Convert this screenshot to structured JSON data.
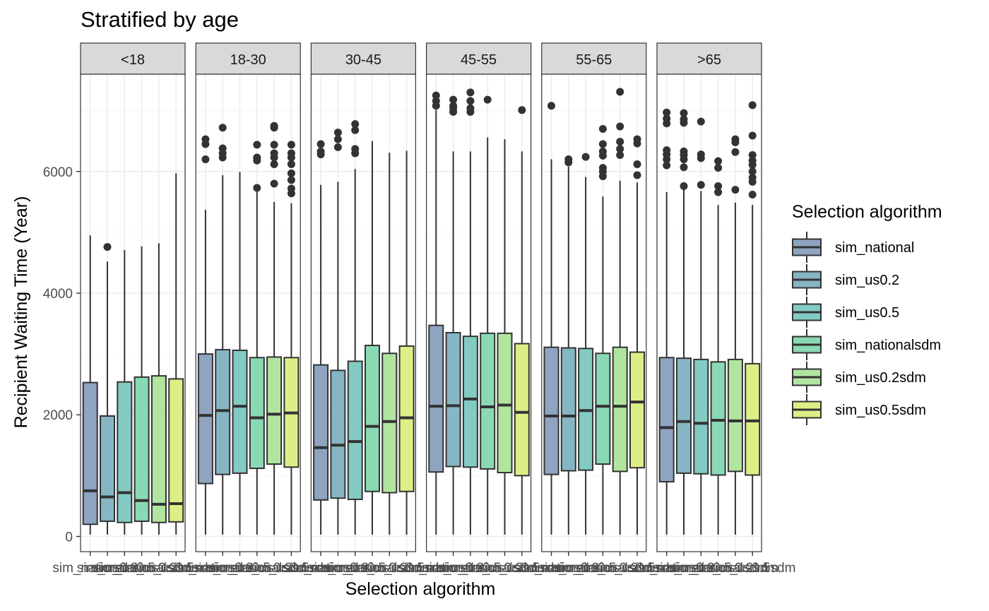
{
  "chart_data": {
    "type": "boxplot",
    "title": "Stratified by age",
    "xlabel": "Selection algorithm",
    "ylabel": "Recipient Waiting Time (Year)",
    "ylim": [
      -250,
      7600
    ],
    "yticks": [
      0,
      2000,
      4000,
      6000
    ],
    "grid": true,
    "legend": {
      "title": "Selection algorithm",
      "position": "right"
    },
    "categories": [
      "sim_national",
      "sim_us0.2",
      "sim_us0.5",
      "sim_nationalsdm",
      "sim_us0.2sdm",
      "sim_us0.5sdm"
    ],
    "colors": [
      "#8fa4c1",
      "#86b6c3",
      "#83cbc2",
      "#8ad9b5",
      "#b1e59f",
      "#dcef86"
    ],
    "panels": [
      {
        "label": "<18",
        "boxes": [
          {
            "min": 30,
            "q1": 200,
            "median": 750,
            "q3": 2530,
            "max": 4950,
            "outliers": []
          },
          {
            "min": 30,
            "q1": 250,
            "median": 650,
            "q3": 1980,
            "max": 4520,
            "outliers": [
              4760
            ]
          },
          {
            "min": 30,
            "q1": 230,
            "median": 720,
            "q3": 2540,
            "max": 4710,
            "outliers": []
          },
          {
            "min": 30,
            "q1": 250,
            "median": 590,
            "q3": 2620,
            "max": 4770,
            "outliers": []
          },
          {
            "min": 30,
            "q1": 230,
            "median": 530,
            "q3": 2640,
            "max": 4820,
            "outliers": []
          },
          {
            "min": 30,
            "q1": 240,
            "median": 540,
            "q3": 2590,
            "max": 5970,
            "outliers": []
          }
        ]
      },
      {
        "label": "18-30",
        "boxes": [
          {
            "min": 30,
            "q1": 870,
            "median": 1990,
            "q3": 3000,
            "max": 5370,
            "outliers": [
              6200,
              6450,
              6530
            ]
          },
          {
            "min": 30,
            "q1": 1020,
            "median": 2070,
            "q3": 3070,
            "max": 5940,
            "outliers": [
              6230,
              6300,
              6380,
              6720
            ]
          },
          {
            "min": 30,
            "q1": 1040,
            "median": 2140,
            "q3": 3060,
            "max": 5990,
            "outliers": []
          },
          {
            "min": 30,
            "q1": 1120,
            "median": 1950,
            "q3": 2940,
            "max": 5670,
            "outliers": [
              5730,
              6180,
              6230,
              6440
            ]
          },
          {
            "min": 30,
            "q1": 1190,
            "median": 2010,
            "q3": 2950,
            "max": 5500,
            "outliers": [
              5800,
              6120,
              6230,
              6300,
              6440,
              6720,
              6750
            ]
          },
          {
            "min": 30,
            "q1": 1140,
            "median": 2030,
            "q3": 2940,
            "max": 5480,
            "outliers": [
              5640,
              5720,
              5860,
              5970,
              6120,
              6230,
              6300,
              6440
            ]
          }
        ]
      },
      {
        "label": "30-45",
        "boxes": [
          {
            "min": 30,
            "q1": 600,
            "median": 1460,
            "q3": 2820,
            "max": 5780,
            "outliers": [
              6280,
              6330,
              6450
            ]
          },
          {
            "min": 30,
            "q1": 630,
            "median": 1500,
            "q3": 2730,
            "max": 5830,
            "outliers": [
              6400,
              6530,
              6640
            ]
          },
          {
            "min": 30,
            "q1": 610,
            "median": 1560,
            "q3": 2880,
            "max": 6040,
            "outliers": [
              6300,
              6370,
              6680,
              6780
            ]
          },
          {
            "min": 30,
            "q1": 740,
            "median": 1810,
            "q3": 3140,
            "max": 6500,
            "outliers": []
          },
          {
            "min": 30,
            "q1": 720,
            "median": 1890,
            "q3": 3010,
            "max": 6310,
            "outliers": []
          },
          {
            "min": 30,
            "q1": 740,
            "median": 1950,
            "q3": 3130,
            "max": 6340,
            "outliers": []
          }
        ]
      },
      {
        "label": "45-55",
        "boxes": [
          {
            "min": 30,
            "q1": 1060,
            "median": 2140,
            "q3": 3470,
            "max": 7010,
            "outliers": [
              7080,
              7160,
              7250
            ]
          },
          {
            "min": 30,
            "q1": 1150,
            "median": 2150,
            "q3": 3350,
            "max": 6330,
            "outliers": [
              6980,
              7040,
              7080,
              7180
            ]
          },
          {
            "min": 30,
            "q1": 1140,
            "median": 2260,
            "q3": 3290,
            "max": 6330,
            "outliers": [
              6980,
              7040,
              7160,
              7300
            ]
          },
          {
            "min": 30,
            "q1": 1110,
            "median": 2130,
            "q3": 3340,
            "max": 6560,
            "outliers": [
              7180
            ]
          },
          {
            "min": 30,
            "q1": 1050,
            "median": 2160,
            "q3": 3340,
            "max": 6530,
            "outliers": []
          },
          {
            "min": 30,
            "q1": 1000,
            "median": 2040,
            "q3": 3170,
            "max": 6330,
            "outliers": [
              7010
            ]
          }
        ]
      },
      {
        "label": "55-65",
        "boxes": [
          {
            "min": 30,
            "q1": 1020,
            "median": 1980,
            "q3": 3110,
            "max": 6200,
            "outliers": [
              7080
            ]
          },
          {
            "min": 30,
            "q1": 1080,
            "median": 1980,
            "q3": 3100,
            "max": 6080,
            "outliers": [
              6150,
              6200
            ]
          },
          {
            "min": 30,
            "q1": 1090,
            "median": 2070,
            "q3": 3090,
            "max": 5910,
            "outliers": [
              6240
            ]
          },
          {
            "min": 30,
            "q1": 1190,
            "median": 2140,
            "q3": 3010,
            "max": 5590,
            "outliers": [
              5920,
              6000,
              6060,
              6260,
              6330,
              6450,
              6700
            ]
          },
          {
            "min": 30,
            "q1": 1070,
            "median": 2140,
            "q3": 3110,
            "max": 5850,
            "outliers": [
              6270,
              6370,
              6490,
              6740,
              7310
            ]
          },
          {
            "min": 30,
            "q1": 1130,
            "median": 2210,
            "q3": 3030,
            "max": 5820,
            "outliers": [
              5940,
              6120,
              6460,
              6530
            ]
          }
        ]
      },
      {
        "label": ">65",
        "boxes": [
          {
            "min": 30,
            "q1": 900,
            "median": 1790,
            "q3": 2940,
            "max": 5660,
            "outliers": [
              6100,
              6200,
              6280,
              6350,
              6790,
              6870,
              6970
            ]
          },
          {
            "min": 30,
            "q1": 1040,
            "median": 1890,
            "q3": 2930,
            "max": 5740,
            "outliers": [
              5760,
              6070,
              6200,
              6270,
              6330,
              6800,
              6860,
              6960
            ]
          },
          {
            "min": 30,
            "q1": 1030,
            "median": 1860,
            "q3": 2910,
            "max": 5680,
            "outliers": [
              5780,
              6220,
              6280,
              6820
            ]
          },
          {
            "min": 30,
            "q1": 1010,
            "median": 1910,
            "q3": 2870,
            "max": 5450,
            "outliers": [
              5660,
              5760,
              6060,
              6170
            ]
          },
          {
            "min": 30,
            "q1": 1070,
            "median": 1900,
            "q3": 2910,
            "max": 5490,
            "outliers": [
              5700,
              6320,
              6480,
              6530
            ]
          },
          {
            "min": 30,
            "q1": 1010,
            "median": 1900,
            "q3": 2840,
            "max": 5450,
            "outliers": [
              5620,
              5830,
              5900,
              6000,
              6110,
              6180,
              6270,
              6590,
              7090
            ]
          }
        ]
      }
    ]
  }
}
